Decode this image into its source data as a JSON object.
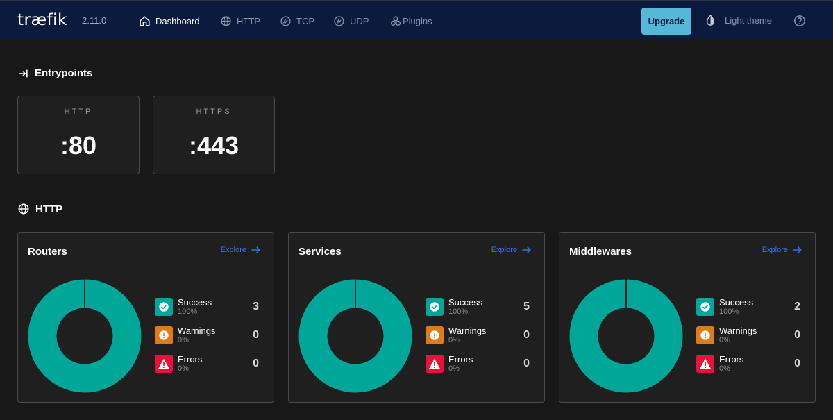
{
  "header": {
    "logo": "træfik",
    "version": "2.11.0",
    "nav": [
      {
        "label": "Dashboard",
        "icon": "home-icon"
      },
      {
        "label": "HTTP",
        "icon": "globe-icon"
      },
      {
        "label": "TCP",
        "icon": "tcp-icon"
      },
      {
        "label": "UDP",
        "icon": "udp-icon"
      },
      {
        "label": "Plugins",
        "icon": "plugins-icon"
      }
    ],
    "active_nav": "Dashboard",
    "upgrade_label": "Upgrade",
    "theme_label": "Light theme"
  },
  "entrypoints": {
    "title": "Entrypoints",
    "items": [
      {
        "name": "HTTP",
        "port": ":80"
      },
      {
        "name": "HTTPS",
        "port": ":443"
      }
    ]
  },
  "http": {
    "title": "HTTP",
    "cards": [
      {
        "title": "Routers",
        "explore": "Explore",
        "success": {
          "label": "Success",
          "pct": "100%",
          "count": "3"
        },
        "warnings": {
          "label": "Warnings",
          "pct": "0%",
          "count": "0"
        },
        "errors": {
          "label": "Errors",
          "pct": "0%",
          "count": "0"
        }
      },
      {
        "title": "Services",
        "explore": "Explore",
        "success": {
          "label": "Success",
          "pct": "100%",
          "count": "5"
        },
        "warnings": {
          "label": "Warnings",
          "pct": "0%",
          "count": "0"
        },
        "errors": {
          "label": "Errors",
          "pct": "0%",
          "count": "0"
        }
      },
      {
        "title": "Middlewares",
        "explore": "Explore",
        "success": {
          "label": "Success",
          "pct": "100%",
          "count": "2"
        },
        "warnings": {
          "label": "Warnings",
          "pct": "0%",
          "count": "0"
        },
        "errors": {
          "label": "Errors",
          "pct": "0%",
          "count": "0"
        }
      }
    ]
  },
  "colors": {
    "topbar": "#0c1a3d",
    "background": "#181818",
    "success": "#00a697",
    "warning": "#e07b1a",
    "error": "#ec0f3a",
    "accent": "#56b8d9",
    "link": "#3d6fe8"
  }
}
